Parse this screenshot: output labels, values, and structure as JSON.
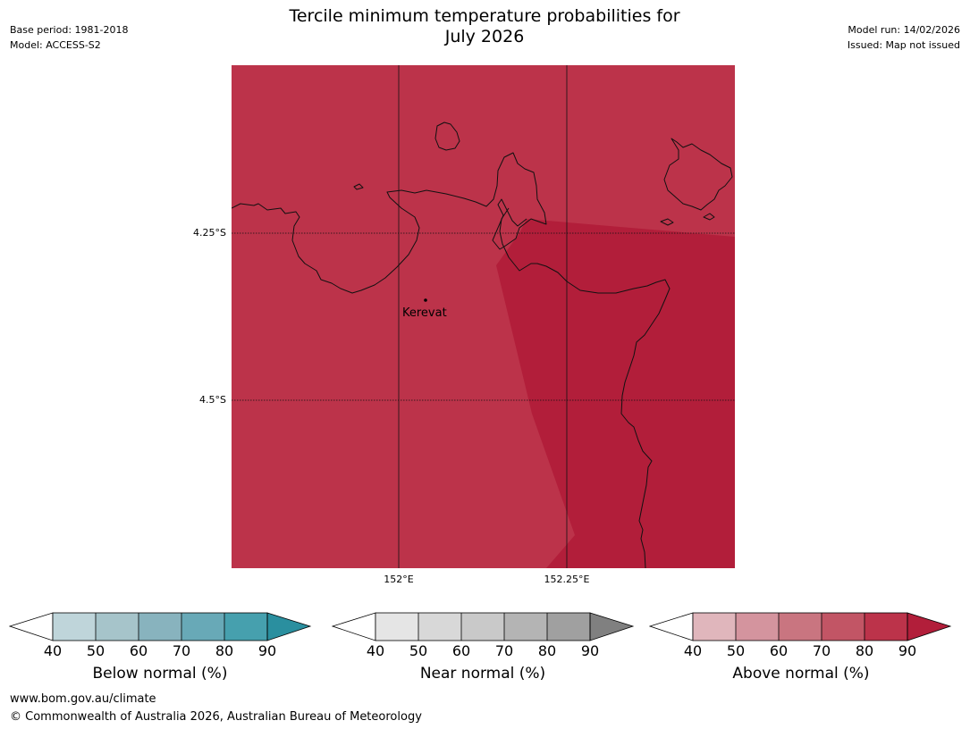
{
  "header": {
    "title_line1": "Tercile minimum temperature probabilities for",
    "title_line2": "July 2026",
    "base_period": "Base period: 1981-2018",
    "model": "Model: ACCESS-S2",
    "model_run": "Model run: 14/02/2026",
    "issued": "Issued: Map not issued"
  },
  "map": {
    "latitude_labels": [
      "4.25°S",
      "4.5°S"
    ],
    "longitude_labels": [
      "152°E",
      "152.25°E"
    ],
    "places": [
      {
        "name": "Kerevat"
      }
    ],
    "fill_colors": {
      "above_70_80": "#bc334a",
      "above_80_90": "#b21e3a"
    }
  },
  "colorbars": [
    {
      "label": "Below normal (%)",
      "ticks": [
        "40",
        "50",
        "60",
        "70",
        "80",
        "90"
      ],
      "colors": [
        "#ffffff",
        "#bfd5da",
        "#a6c4ca",
        "#88b3be",
        "#68a9b7",
        "#46a0ae",
        "#2a8f9f"
      ]
    },
    {
      "label": "Near normal (%)",
      "ticks": [
        "40",
        "50",
        "60",
        "70",
        "80",
        "90"
      ],
      "colors": [
        "#ffffff",
        "#e5e5e5",
        "#d8d8d8",
        "#c9c9c9",
        "#b4b4b4",
        "#a0a0a0",
        "#808080"
      ]
    },
    {
      "label": "Above normal (%)",
      "ticks": [
        "40",
        "50",
        "60",
        "70",
        "80",
        "90"
      ],
      "colors": [
        "#ffffff",
        "#e0b6bc",
        "#d4949e",
        "#c97580",
        "#c25565",
        "#bc334a",
        "#b21e3a"
      ]
    }
  ],
  "footer": {
    "website": "www.bom.gov.au/climate",
    "copyright": "© Commonwealth of Australia 2026, Australian Bureau of Meteorology"
  }
}
